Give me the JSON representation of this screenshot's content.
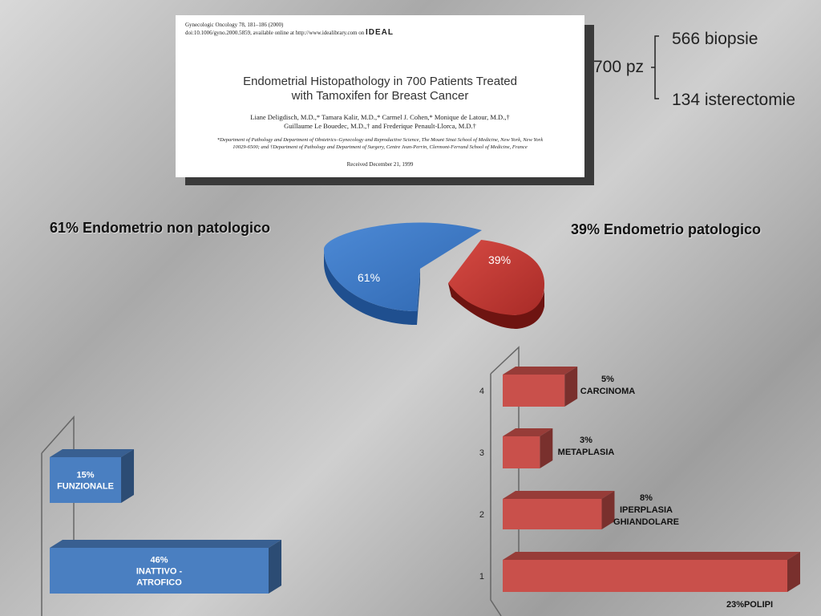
{
  "paper": {
    "citation_line1": "Gynecologic Oncology 78, 181–186 (2000)",
    "citation_line2": "doi:10.1006/gyno.2000.5859, available online at http://www.idealibrary.com on",
    "logo": "IDEAL",
    "title_line1": "Endometrial Histopathology in 700 Patients Treated",
    "title_line2": "with Tamoxifen for Breast Cancer",
    "authors_line1": "Liane Deligdisch, M.D.,* Tamara Kalir, M.D.,* Carmel J. Cohen,* Monique de Latour, M.D.,†",
    "authors_line2": "Guillaume Le Bouedec, M.D.,† and Frederique Penault-Llorca, M.D.†",
    "affiliation_line1": "*Department of Pathology and Department of Obstetrics–Gynecology and Reproductive Science, The Mount Sinai School of Medicine, New York, New York",
    "affiliation_line2": "10029-6500; and †Department of Pathology and Department of Surgery, Centre Jean-Perrin, Clermont-Ferrand School of Medicine, France",
    "received": "Received December 21, 1999"
  },
  "summary": {
    "total": "700 pz",
    "biopsies": "566 biopsie",
    "hysterectomies": "134 isterectomie"
  },
  "headings": {
    "left": "61%  Endometrio non patologico",
    "right": "39%  Endometrio patologico"
  },
  "colors": {
    "blue": "#3b78c4",
    "red": "#c23a35"
  },
  "chart_data": [
    {
      "type": "pie",
      "labels": [
        "61%",
        "39%"
      ],
      "values": [
        61,
        39
      ],
      "colors": [
        "#3b78c4",
        "#c23a35"
      ]
    },
    {
      "type": "bar",
      "orientation": "horizontal",
      "categories": [
        "1",
        "2",
        "3",
        "4"
      ],
      "values": [
        23,
        8,
        3,
        5
      ],
      "labels": [
        "23%POLIPI",
        "8%\nIPERPLASIA\nGHIANDOLARE",
        "3%\nMETAPLASIA",
        "5%\nCARCINOMA"
      ],
      "color": "#c9504b"
    },
    {
      "type": "bar",
      "orientation": "horizontal",
      "categories": [
        "INATTIVO - ATROFICO",
        "FUNZIONALE"
      ],
      "values": [
        46,
        15
      ],
      "labels": [
        "46%\nINATTIVO -\nATROFICO",
        "15%\nFUNZIONALE"
      ],
      "color": "#4a7fc1"
    }
  ]
}
